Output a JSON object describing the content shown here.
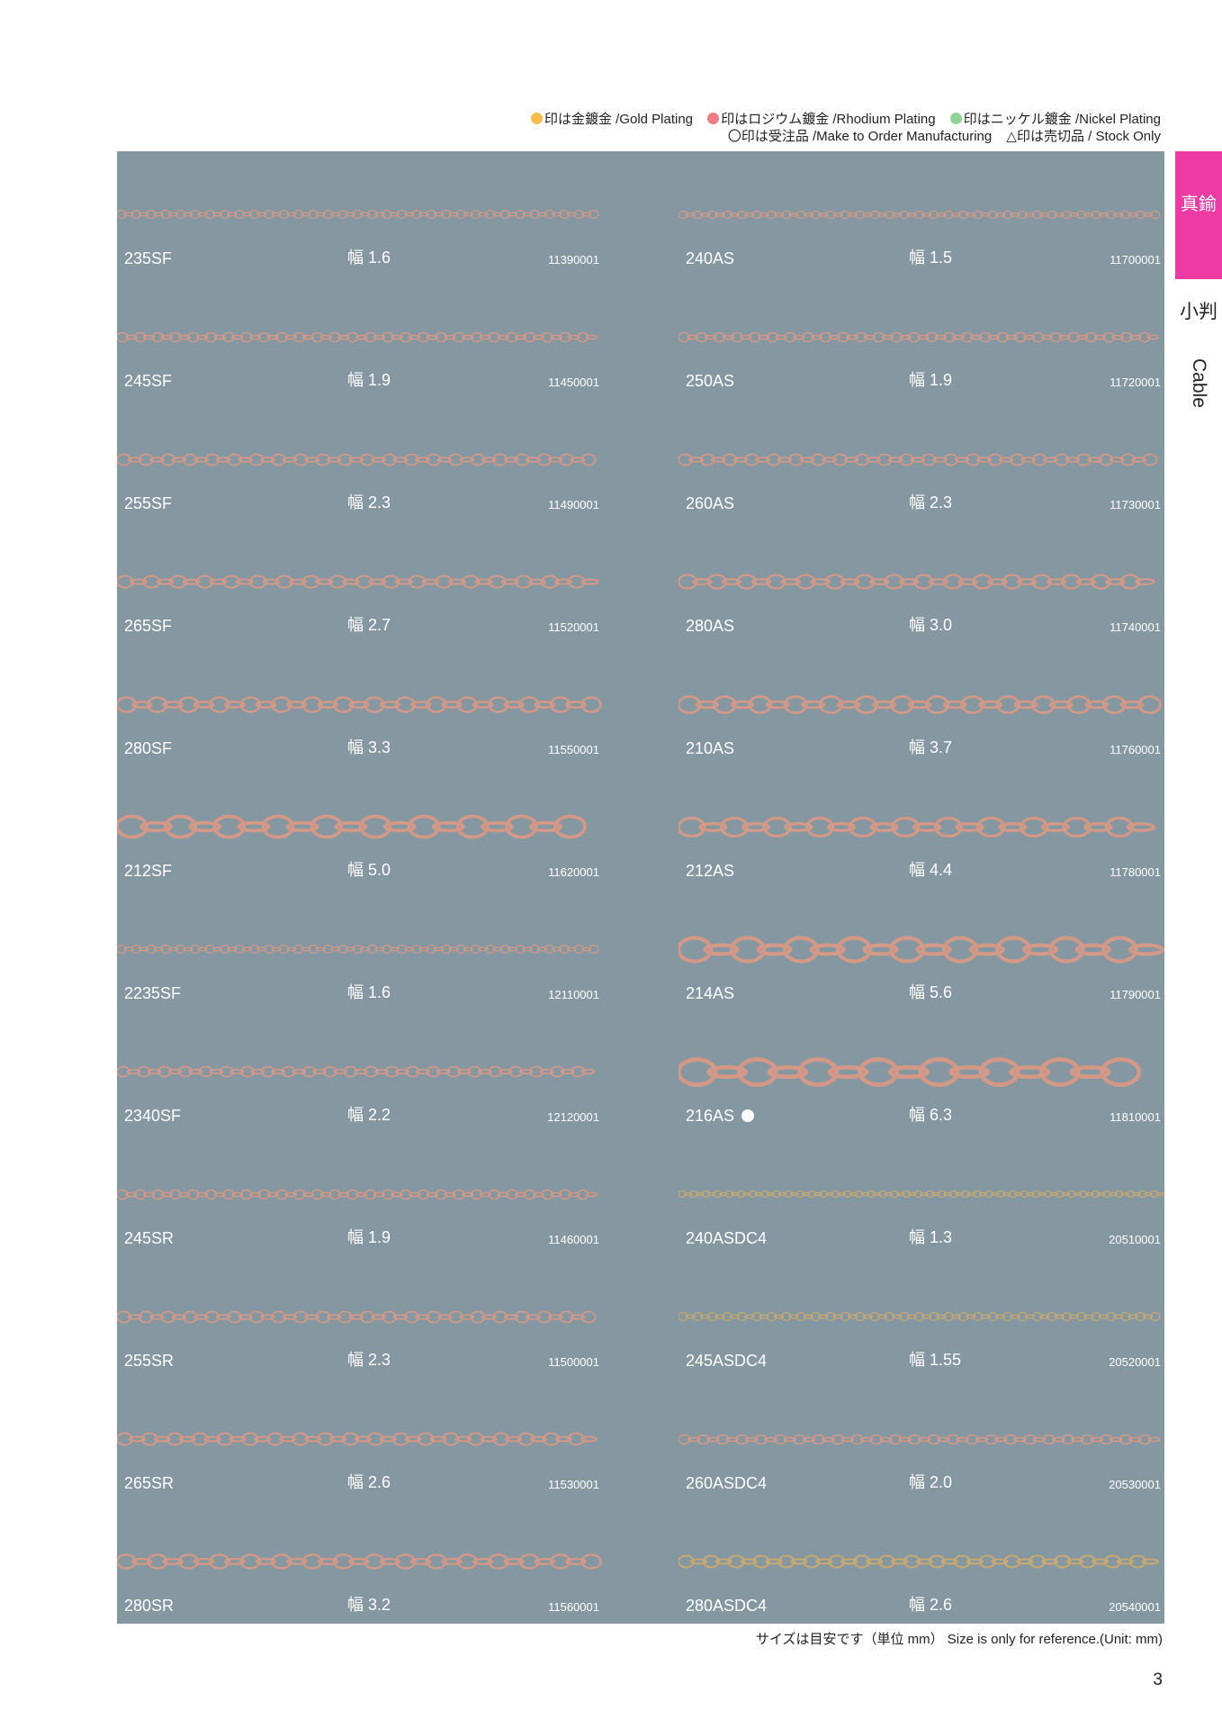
{
  "legend": {
    "gold": {
      "label": "印は金鍍金 /Gold Plating",
      "color": "#fbbc4a"
    },
    "rhodium": {
      "label": "印はロジウム鍍金 /Rhodium Plating",
      "color": "#f07a86"
    },
    "nickel": {
      "label": "印はニッケル鍍金 /Nickel Plating",
      "color": "#8ed496"
    },
    "order": "〇印は受注品 /Make to Order Manufacturing",
    "stock": "△印は売切品 / Stock Only"
  },
  "tab": {
    "label": "真鍮",
    "color": "#ee3aa3"
  },
  "side": {
    "jp": "小判",
    "en": "Cable"
  },
  "chain_colors": {
    "copper": "#d49886",
    "gold": "#c9a970"
  },
  "left_column": [
    {
      "code": "235SF",
      "width": "幅 1.6",
      "ref": "11390001",
      "weight": 1.6
    },
    {
      "code": "245SF",
      "width": "幅 1.9",
      "ref": "11450001",
      "weight": 1.9
    },
    {
      "code": "255SF",
      "width": "幅 2.3",
      "ref": "11490001",
      "weight": 2.3
    },
    {
      "code": "265SF",
      "width": "幅 2.7",
      "ref": "11520001",
      "weight": 2.7
    },
    {
      "code": "280SF",
      "width": "幅 3.3",
      "ref": "11550001",
      "weight": 3.3
    },
    {
      "code": "212SF",
      "width": "幅 5.0",
      "ref": "11620001",
      "weight": 5.0
    },
    {
      "code": "2235SF",
      "width": "幅 1.6",
      "ref": "12110001",
      "weight": 1.6
    },
    {
      "code": "2340SF",
      "width": "幅 2.2",
      "ref": "12120001",
      "weight": 2.2
    },
    {
      "code": "245SR",
      "width": "幅 1.9",
      "ref": "11460001",
      "weight": 1.9
    },
    {
      "code": "255SR",
      "width": "幅 2.3",
      "ref": "11500001",
      "weight": 2.3
    },
    {
      "code": "265SR",
      "width": "幅 2.6",
      "ref": "11530001",
      "weight": 2.6
    },
    {
      "code": "280SR",
      "width": "幅 3.2",
      "ref": "11560001",
      "weight": 3.2
    }
  ],
  "right_column": [
    {
      "code": "240AS",
      "width": "幅 1.5",
      "ref": "11700001",
      "weight": 1.5
    },
    {
      "code": "250AS",
      "width": "幅 1.9",
      "ref": "11720001",
      "weight": 1.9
    },
    {
      "code": "260AS",
      "width": "幅 2.3",
      "ref": "11730001",
      "weight": 2.3
    },
    {
      "code": "280AS",
      "width": "幅 3.0",
      "ref": "11740001",
      "weight": 3.0
    },
    {
      "code": "210AS",
      "width": "幅 3.7",
      "ref": "11760001",
      "weight": 3.7
    },
    {
      "code": "212AS",
      "width": "幅 4.4",
      "ref": "11780001",
      "weight": 4.4
    },
    {
      "code": "214AS",
      "width": "幅 5.6",
      "ref": "11790001",
      "weight": 5.6
    },
    {
      "code": "216AS",
      "width": "幅 6.3",
      "ref": "11810001",
      "weight": 6.3,
      "made_to_order": true
    },
    {
      "code": "240ASDC4",
      "width": "幅 1.3",
      "ref": "20510001",
      "weight": 1.3,
      "tone": "gold"
    },
    {
      "code": "245ASDC4",
      "width": "幅 1.55",
      "ref": "20520001",
      "weight": 1.55,
      "tone": "gold"
    },
    {
      "code": "260ASDC4",
      "width": "幅 2.0",
      "ref": "20530001",
      "weight": 2.0
    },
    {
      "code": "280ASDC4",
      "width": "幅 2.6",
      "ref": "20540001",
      "weight": 2.6,
      "tone": "gold"
    }
  ],
  "footnote": "サイズは目安です（単位 mm） Size is only for reference.(Unit: mm)",
  "page_number": "3"
}
